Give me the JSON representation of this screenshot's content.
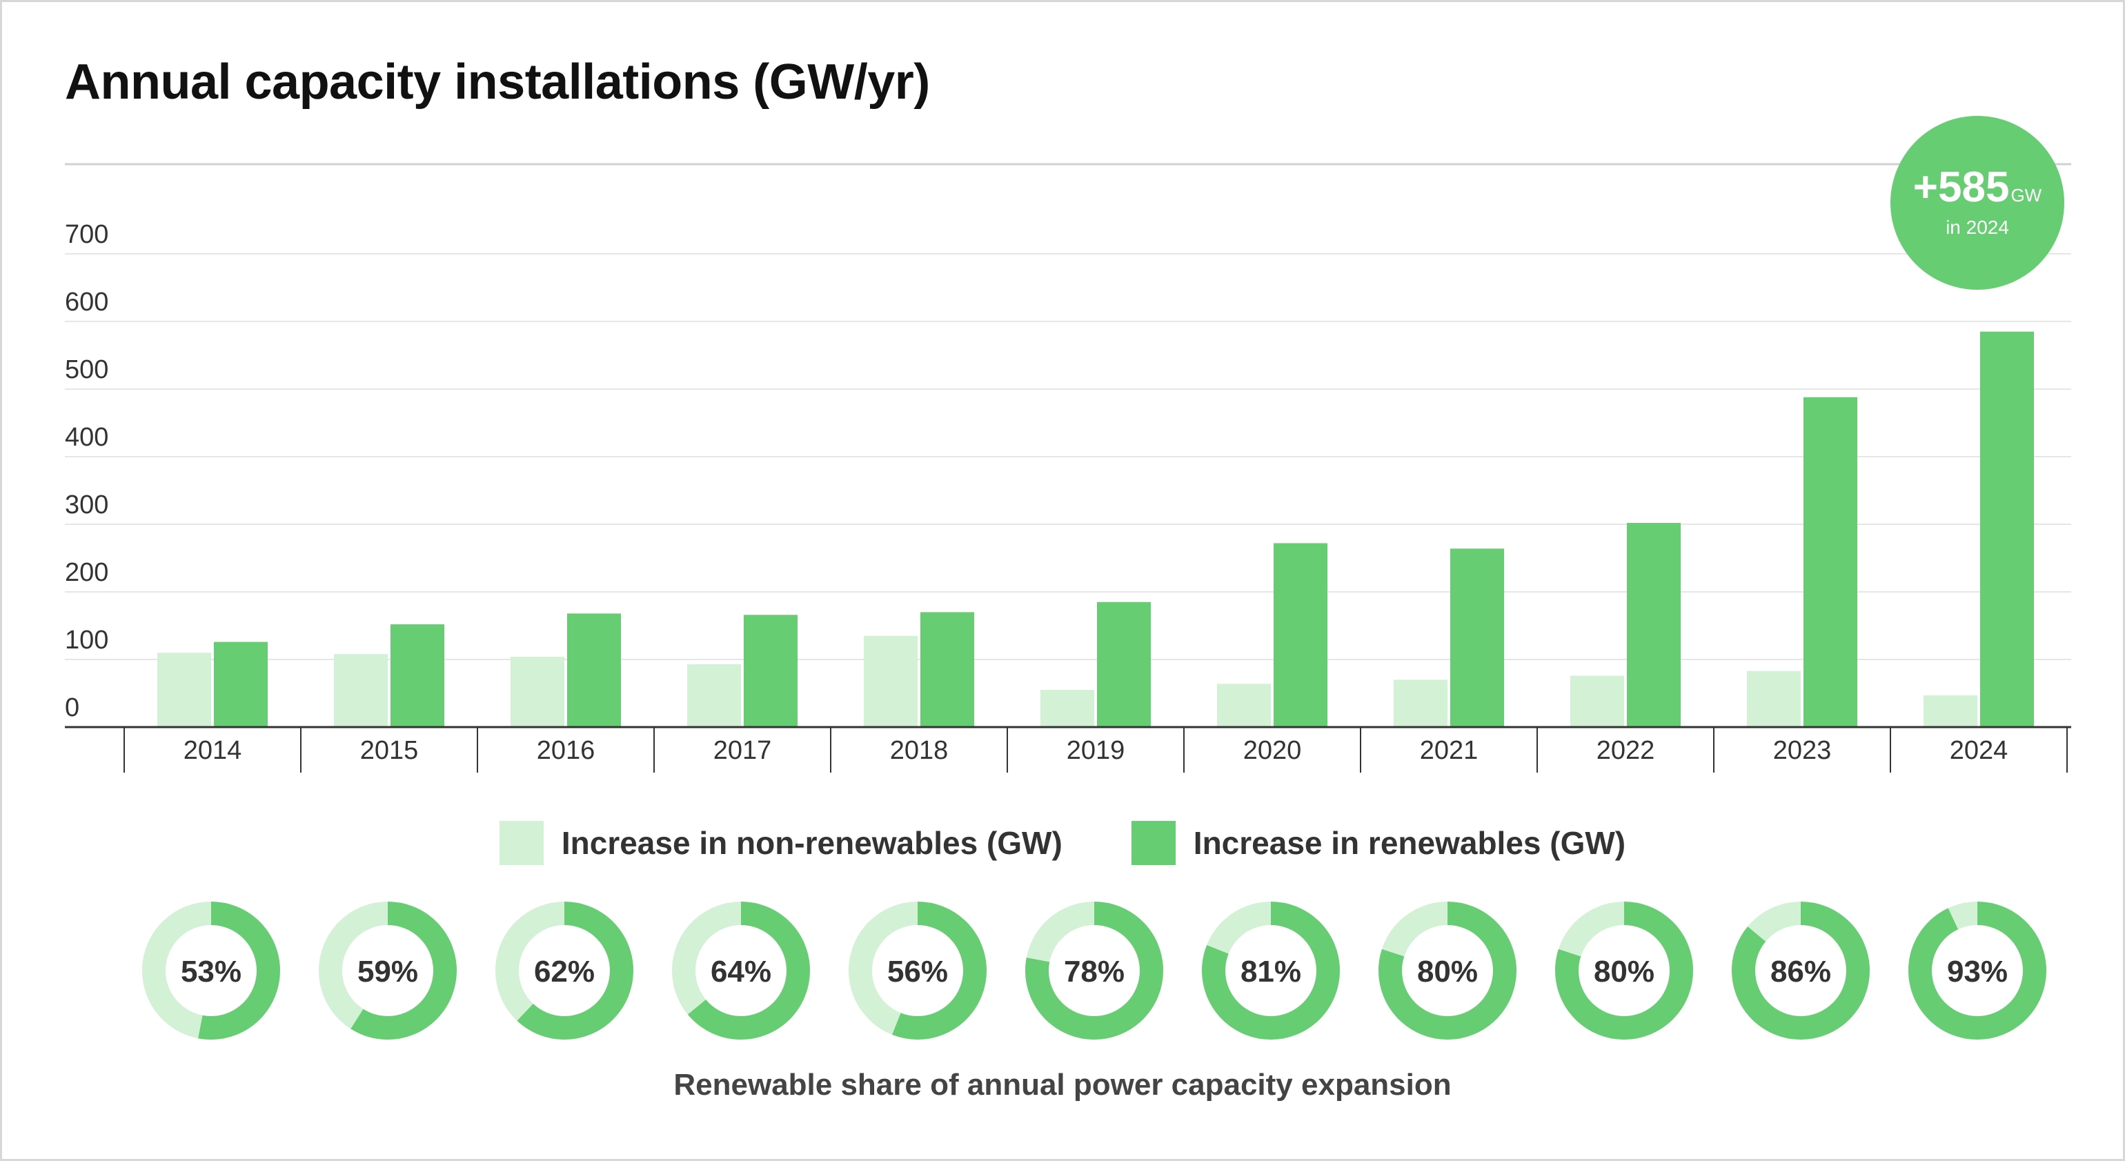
{
  "title": "Annual capacity installations (GW/yr)",
  "colors": {
    "renewable": "#67cd72",
    "non_renewable": "#d3f1d5",
    "grid": "#e6e6e6",
    "axis": "#333333",
    "text": "#333333"
  },
  "badge": {
    "value": "+585",
    "unit": "GW",
    "sub": "in 2024"
  },
  "legend": [
    {
      "label": "Increase in non-renewables (GW)",
      "color": "#d3f1d5"
    },
    {
      "label": "Increase in renewables (GW)",
      "color": "#67cd72"
    }
  ],
  "donut_caption": "Renewable share of annual power capacity expansion",
  "chart_data": [
    {
      "type": "bar",
      "title": "Annual capacity installations (GW/yr)",
      "categories": [
        "2014",
        "2015",
        "2016",
        "2017",
        "2018",
        "2019",
        "2020",
        "2021",
        "2022",
        "2023",
        "2024"
      ],
      "series": [
        {
          "name": "Increase in non-renewables (GW)",
          "values": [
            110,
            108,
            104,
            93,
            135,
            55,
            64,
            70,
            76,
            83,
            47
          ]
        },
        {
          "name": "Increase in renewables (GW)",
          "values": [
            126,
            152,
            168,
            166,
            170,
            185,
            272,
            264,
            302,
            488,
            585
          ]
        }
      ],
      "yticks": [
        0,
        100,
        200,
        300,
        400,
        500,
        600,
        700
      ],
      "ylim": [
        0,
        800
      ],
      "grid": true,
      "legend_position": "bottom"
    },
    {
      "type": "pie",
      "title": "Renewable share of annual power capacity expansion",
      "categories": [
        "2014",
        "2015",
        "2016",
        "2017",
        "2018",
        "2019",
        "2020",
        "2021",
        "2022",
        "2023",
        "2024"
      ],
      "values": [
        53,
        59,
        62,
        64,
        56,
        78,
        81,
        80,
        80,
        86,
        93
      ],
      "labels": [
        "53%",
        "59%",
        "62%",
        "64%",
        "56%",
        "78%",
        "81%",
        "80%",
        "80%",
        "86%",
        "93%"
      ]
    }
  ]
}
